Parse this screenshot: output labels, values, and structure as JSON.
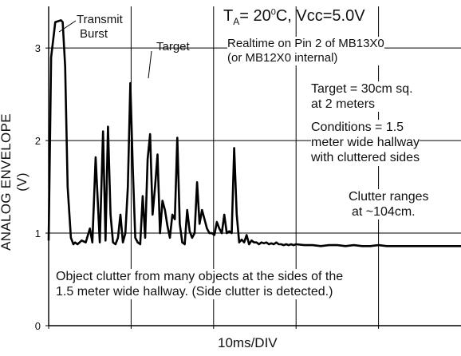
{
  "chart_data": {
    "type": "line",
    "title": "",
    "xlabel": "10ms/DIV",
    "ylabel": "ANALOG ENVELOPE (V)",
    "ylim": [
      0,
      3.45
    ],
    "xlim": [
      0,
      50
    ],
    "y_ticks": [
      "0",
      "1",
      "2",
      "3"
    ],
    "grid": true,
    "series": [
      {
        "name": "",
        "x": [
          0,
          0.3,
          0.8,
          1.5,
          1.7,
          2,
          2.3,
          2.7,
          3,
          3.2,
          3.5,
          4,
          4.5,
          5,
          5.3,
          5.7,
          6.2,
          6.6,
          6.9,
          7.2,
          7.5,
          7.8,
          8.1,
          8.4,
          8.7,
          9,
          9.3,
          9.6,
          9.9,
          10.2,
          10.5,
          10.8,
          11.1,
          11.4,
          11.7,
          12,
          12.3,
          12.6,
          12.9,
          13.2,
          13.5,
          13.8,
          14.1,
          14.4,
          14.7,
          15,
          15.3,
          15.6,
          15.9,
          16.2,
          16.5,
          16.8,
          17.1,
          17.4,
          17.7,
          18,
          18.3,
          18.6,
          18.9,
          19.2,
          19.5,
          19.8,
          20.1,
          20.4,
          20.7,
          21,
          21.3,
          21.6,
          21.9,
          22.2,
          22.5,
          22.8,
          23.1,
          23.4,
          23.7,
          24,
          24.3,
          24.6,
          24.9,
          25.2,
          25.5,
          25.8,
          26.1,
          26.4,
          26.7,
          27,
          27.3,
          27.6,
          27.9,
          28.2,
          28.5,
          28.8,
          29.1,
          29.4,
          29.7,
          30,
          31,
          32,
          33,
          34,
          35,
          36,
          37,
          38,
          39,
          40,
          41,
          42,
          43,
          44,
          45,
          46,
          47,
          48,
          49,
          50
        ],
        "y": [
          0.92,
          2.9,
          3.28,
          3.3,
          3.28,
          2.8,
          1.5,
          0.95,
          0.88,
          0.9,
          0.88,
          0.92,
          0.9,
          1.05,
          0.9,
          1.82,
          0.9,
          2.1,
          0.92,
          2.15,
          1.2,
          0.9,
          0.88,
          0.95,
          1.2,
          0.9,
          1.0,
          1.5,
          2.62,
          1.7,
          0.95,
          0.9,
          0.88,
          1.4,
          0.95,
          1.8,
          2.07,
          1.2,
          1.5,
          1.85,
          1.0,
          1.35,
          1.25,
          1.08,
          0.95,
          1.2,
          1.15,
          2.03,
          1.1,
          0.9,
          0.88,
          1.25,
          1.02,
          0.95,
          1.0,
          1.55,
          1.1,
          1.25,
          1.15,
          1.05,
          1.0,
          1.0,
          0.98,
          1.12,
          1.05,
          1.0,
          1.2,
          1.0,
          1.02,
          1.0,
          1.92,
          1.2,
          0.9,
          0.93,
          0.9,
          0.98,
          0.88,
          0.92,
          0.9,
          0.9,
          0.88,
          0.9,
          0.89,
          0.9,
          0.88,
          0.89,
          0.88,
          0.9,
          0.88,
          0.88,
          0.87,
          0.88,
          0.87,
          0.88,
          0.87,
          0.88,
          0.87,
          0.87,
          0.86,
          0.87,
          0.87,
          0.86,
          0.87,
          0.86,
          0.86,
          0.87,
          0.86,
          0.86,
          0.86,
          0.86,
          0.86,
          0.86,
          0.86,
          0.86,
          0.86,
          0.86
        ]
      }
    ],
    "annotations": {
      "transmit": "Transmit",
      "burst": "Burst",
      "target": "Target",
      "conditions_title_pre": "T",
      "conditions_title_sub": "A",
      "conditions_title_post": "= 20",
      "conditions_degree": "0",
      "conditions_title_end": "C, Vcc=5.0V",
      "realtime_line1": "Realtime on Pin 2 of MB13X0",
      "realtime_line2": "(or MB12X0 internal)",
      "target_desc_1": "Target = 30cm sq.",
      "target_desc_2": "at 2 meters",
      "cond_1": "Conditions = 1.5",
      "cond_2": "meter wide hallway",
      "cond_3": "with cluttered sides",
      "clutter_1": "Clutter ranges",
      "clutter_2": "at ~104cm.",
      "object_1": "Object clutter from many objects at the sides of the",
      "object_2": "1.5 meter wide hallway.  (Side clutter is detected.)"
    }
  }
}
